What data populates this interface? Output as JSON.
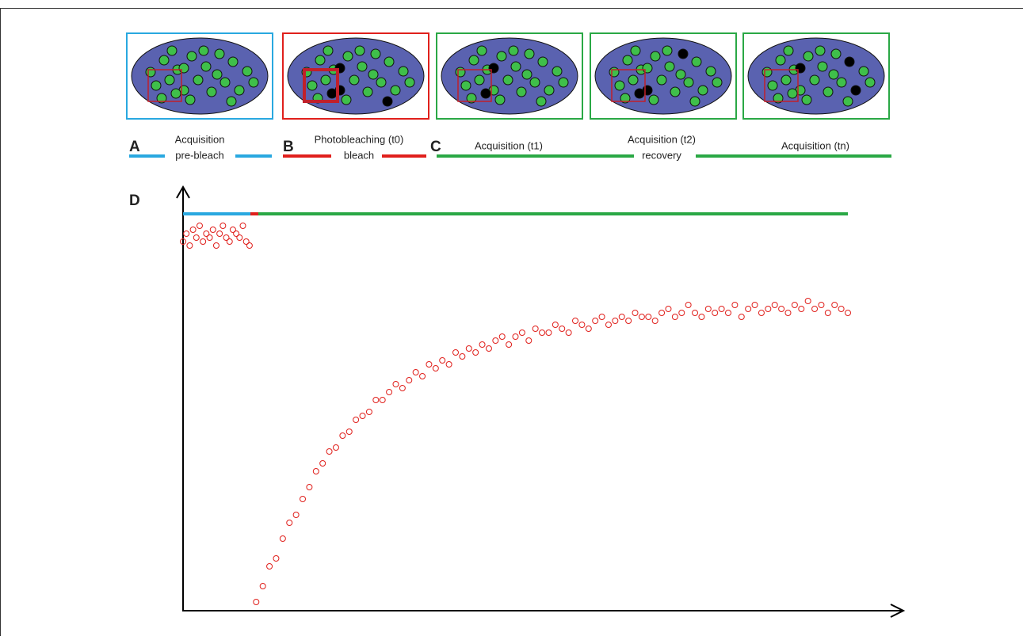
{
  "panels": {
    "a": {
      "letter": "A",
      "line1": "Acquisition",
      "line2": "pre-bleach"
    },
    "b": {
      "letter": "B",
      "line1": "Photobleaching (t0)",
      "line2": "bleach"
    },
    "c": {
      "letter": "C",
      "t1": "Acquisition (t1)",
      "t2": "Acquisition (t2)",
      "tn": "Acquisition (tn)",
      "line2": "recovery"
    }
  },
  "plot": {
    "letter": "D",
    "type": "scatter",
    "color": "#e0201c",
    "xlim": [
      0,
      100
    ],
    "ylim": [
      0,
      100
    ],
    "x": [
      0,
      0.5,
      1,
      1.5,
      2,
      2.5,
      3,
      3.5,
      4,
      4.5,
      5,
      5.5,
      6,
      6.5,
      7,
      7.5,
      8,
      8.5,
      9,
      9.5,
      10,
      11,
      12,
      13,
      14,
      15,
      16,
      17,
      18,
      19,
      20,
      21,
      22,
      23,
      24,
      25,
      26,
      27,
      28,
      29,
      30,
      31,
      32,
      33,
      34,
      35,
      36,
      37,
      38,
      39,
      40,
      41,
      42,
      43,
      44,
      45,
      46,
      47,
      48,
      49,
      50,
      51,
      52,
      53,
      54,
      55,
      56,
      57,
      58,
      59,
      60,
      61,
      62,
      63,
      64,
      65,
      66,
      67,
      68,
      69,
      70,
      71,
      72,
      73,
      74,
      75,
      76,
      77,
      78,
      79,
      80,
      81,
      82,
      83,
      84,
      85,
      86,
      87,
      88,
      89,
      90,
      91,
      92,
      93,
      94,
      95,
      96,
      97,
      98,
      99,
      100
    ],
    "values": [
      93,
      95,
      92,
      96,
      94,
      97,
      93,
      95,
      94,
      96,
      92,
      95,
      97,
      94,
      93,
      96,
      95,
      94,
      97,
      93,
      92,
      2,
      6,
      11,
      13,
      18,
      22,
      24,
      28,
      31,
      35,
      37,
      40,
      41,
      44,
      45,
      48,
      49,
      50,
      53,
      53,
      55,
      57,
      56,
      58,
      60,
      59,
      62,
      61,
      63,
      62,
      65,
      64,
      66,
      65,
      67,
      66,
      68,
      69,
      67,
      69,
      70,
      68,
      71,
      70,
      70,
      72,
      71,
      70,
      73,
      72,
      71,
      73,
      74,
      72,
      73,
      74,
      73,
      75,
      74,
      74,
      73,
      75,
      76,
      74,
      75,
      77,
      75,
      74,
      76,
      75,
      76,
      75,
      77,
      74,
      76,
      77,
      75,
      76,
      77,
      76,
      75,
      77,
      76,
      78,
      76,
      77,
      75,
      77,
      76,
      75
    ]
  }
}
